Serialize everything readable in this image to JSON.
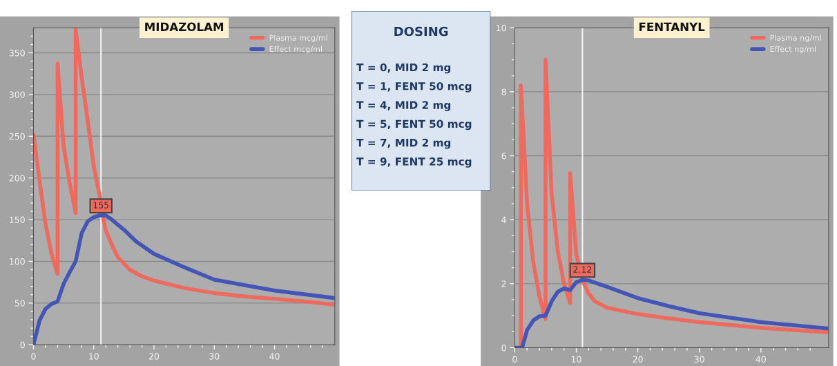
{
  "chart_data": [
    {
      "type": "line",
      "title": "MIDAZOLAM",
      "xlim": [
        0,
        50
      ],
      "ylim": [
        0,
        380
      ],
      "xticks": [
        0,
        {
          "value": 2,
          "label": null
        },
        {
          "value": 4,
          "label": null
        },
        {
          "value": 6,
          "label": null
        },
        {
          "value": 8,
          "label": null
        },
        10,
        {
          "value": 12,
          "label": null
        },
        {
          "value": 14,
          "label": null
        },
        {
          "value": 16,
          "label": null
        },
        {
          "value": 18,
          "label": null
        },
        20,
        {
          "value": 22,
          "label": null
        },
        {
          "value": 24,
          "label": null
        },
        {
          "value": 26,
          "label": null
        },
        {
          "value": 28,
          "label": null
        },
        30,
        {
          "value": 32,
          "label": null
        },
        {
          "value": 34,
          "label": null
        },
        {
          "value": 36,
          "label": null
        },
        {
          "value": 38,
          "label": null
        },
        40,
        {
          "value": 42,
          "label": null
        },
        {
          "value": 44,
          "label": null
        },
        {
          "value": 46,
          "label": null
        },
        {
          "value": 48,
          "label": null
        }
      ],
      "yticks": [
        0,
        {
          "value": 10,
          "label": null
        },
        {
          "value": 20,
          "label": null
        },
        {
          "value": 30,
          "label": null
        },
        {
          "value": 40,
          "label": null
        },
        50,
        {
          "value": 60,
          "label": null
        },
        {
          "value": 70,
          "label": null
        },
        {
          "value": 80,
          "label": null
        },
        {
          "value": 90,
          "label": null
        },
        100,
        {
          "value": 110,
          "label": null
        },
        {
          "value": 120,
          "label": null
        },
        {
          "value": 130,
          "label": null
        },
        {
          "value": 140,
          "label": null
        },
        150,
        {
          "value": 160,
          "label": null
        },
        {
          "value": 170,
          "label": null
        },
        {
          "value": 180,
          "label": null
        },
        {
          "value": 190,
          "label": null
        },
        200,
        {
          "value": 210,
          "label": null
        },
        {
          "value": 220,
          "label": null
        },
        {
          "value": 230,
          "label": null
        },
        {
          "value": 240,
          "label": null
        },
        250,
        {
          "value": 260,
          "label": null
        },
        {
          "value": 270,
          "label": null
        },
        {
          "value": 280,
          "label": null
        },
        {
          "value": 290,
          "label": null
        },
        300,
        {
          "value": 310,
          "label": null
        },
        {
          "value": 320,
          "label": null
        },
        {
          "value": 330,
          "label": null
        },
        {
          "value": 340,
          "label": null
        },
        350,
        {
          "value": 360,
          "label": null
        },
        {
          "value": 370,
          "label": null
        }
      ],
      "grid": "y",
      "legend": "top right",
      "line_style": "solid",
      "marker": "none",
      "series": [
        {
          "name": "Plasma mcg/ml",
          "color": "#ee6a5f",
          "x": [
            0,
            1,
            2,
            3,
            4,
            4,
            5,
            6,
            7,
            7,
            8,
            9,
            10,
            11,
            11.5,
            12,
            13,
            14,
            16,
            18,
            20,
            25,
            30,
            35,
            40,
            45,
            50
          ],
          "values": [
            252,
            197,
            145,
            109,
            85,
            337,
            238,
            194,
            158,
            378,
            321,
            269,
            214,
            178,
            155,
            137,
            120,
            105,
            90,
            82,
            77,
            68,
            62,
            58,
            55,
            52,
            48
          ]
        },
        {
          "name": "Effect mcg/ml",
          "color": "#4455b5",
          "x": [
            0,
            1,
            2,
            3,
            4,
            5,
            6,
            7,
            8,
            9,
            10,
            11,
            12,
            13,
            15,
            17,
            20,
            25,
            30,
            40,
            50
          ],
          "values": [
            0,
            29,
            43,
            49,
            52,
            73,
            87,
            100,
            134,
            148,
            153,
            155,
            155,
            150,
            138,
            124,
            109,
            93,
            78,
            65,
            56
          ]
        }
      ],
      "ref_lines": [
        {
          "axis": "x",
          "value": 11.2,
          "color": "#f2f2f2"
        }
      ],
      "annotations": [
        {
          "text": "155",
          "x": 11.2,
          "y": 155
        }
      ]
    },
    {
      "type": "other",
      "title": "DOSING",
      "annotations": [
        "T = 0, MID 2 mg",
        "T = 1, FENT 50 mcg",
        "T = 4, MID 2 mg",
        "T = 5, FENT 50 mcg",
        "T = 7, MID 2 mg",
        "T = 9, FENT 25 mcg"
      ]
    },
    {
      "type": "line",
      "title": "FENTANYL",
      "xlim": [
        0,
        51
      ],
      "ylim": [
        0,
        10
      ],
      "xticks": [
        0,
        {
          "value": 2,
          "label": null
        },
        {
          "value": 4,
          "label": null
        },
        {
          "value": 6,
          "label": null
        },
        {
          "value": 8,
          "label": null
        },
        10,
        {
          "value": 12,
          "label": null
        },
        {
          "value": 14,
          "label": null
        },
        {
          "value": 16,
          "label": null
        },
        {
          "value": 18,
          "label": null
        },
        20,
        {
          "value": 22,
          "label": null
        },
        {
          "value": 24,
          "label": null
        },
        {
          "value": 26,
          "label": null
        },
        {
          "value": 28,
          "label": null
        },
        30,
        {
          "value": 32,
          "label": null
        },
        {
          "value": 34,
          "label": null
        },
        {
          "value": 36,
          "label": null
        },
        {
          "value": 38,
          "label": null
        },
        40,
        {
          "value": 42,
          "label": null
        },
        {
          "value": 44,
          "label": null
        },
        {
          "value": 46,
          "label": null
        },
        {
          "value": 48,
          "label": null
        }
      ],
      "yticks": [
        0,
        {
          "value": 0.5,
          "label": null
        },
        {
          "value": 1,
          "label": null
        },
        {
          "value": 1.5,
          "label": null
        },
        2,
        {
          "value": 2.5,
          "label": null
        },
        {
          "value": 3,
          "label": null
        },
        {
          "value": 3.5,
          "label": null
        },
        4,
        {
          "value": 4.5,
          "label": null
        },
        {
          "value": 5,
          "label": null
        },
        {
          "value": 5.5,
          "label": null
        },
        6,
        {
          "value": 6.5,
          "label": null
        },
        {
          "value": 7,
          "label": null
        },
        {
          "value": 7.5,
          "label": null
        },
        8,
        {
          "value": 8.5,
          "label": null
        },
        {
          "value": 9,
          "label": null
        },
        {
          "value": 9.5,
          "label": null
        },
        10
      ],
      "grid": "y",
      "legend": "top right",
      "line_style": "solid",
      "marker": "none",
      "series": [
        {
          "name": "Plasma ng/ml",
          "color": "#ee6a5f",
          "x": [
            0,
            1,
            1,
            2,
            3,
            4,
            5,
            5,
            6,
            7,
            8,
            9,
            9,
            10,
            11,
            12,
            13,
            15,
            20,
            25,
            30,
            40,
            51
          ],
          "values": [
            0,
            0,
            8.2,
            4.5,
            2.7,
            1.6,
            0.9,
            9.0,
            4.8,
            3.0,
            2.0,
            1.4,
            5.45,
            2.9,
            2.1,
            1.7,
            1.45,
            1.25,
            1.05,
            0.92,
            0.8,
            0.62,
            0.48
          ]
        },
        {
          "name": "Effect ng/ml",
          "color": "#4455b5",
          "x": [
            0,
            1.2,
            2,
            3,
            4,
            5,
            6,
            7,
            8,
            9,
            10,
            11,
            12,
            15,
            20,
            25,
            30,
            40,
            51
          ],
          "values": [
            0,
            0,
            0.55,
            0.85,
            0.98,
            1.0,
            1.45,
            1.75,
            1.85,
            1.8,
            2.05,
            2.12,
            2.1,
            1.9,
            1.55,
            1.3,
            1.08,
            0.8,
            0.6
          ]
        }
      ],
      "ref_lines": [
        {
          "axis": "x",
          "value": 11,
          "color": "#f2f2f2"
        }
      ],
      "annotations": [
        {
          "text": "2.12",
          "x": 11,
          "y": 2.12
        }
      ]
    }
  ]
}
